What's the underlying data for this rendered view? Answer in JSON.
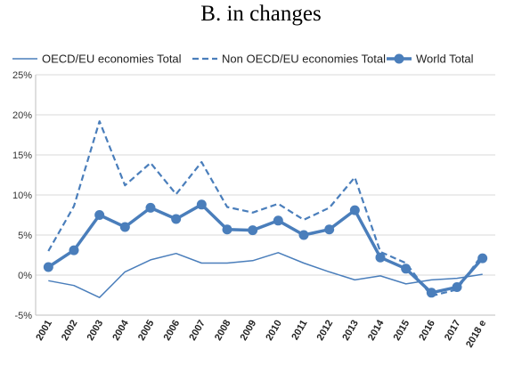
{
  "chart_data": {
    "type": "line",
    "title": "B. in changes",
    "categories": [
      "2001",
      "2002",
      "2003",
      "2004",
      "2005",
      "2006",
      "2007",
      "2008",
      "2009",
      "2010",
      "2011",
      "2012",
      "2013",
      "2014",
      "2015",
      "2016",
      "2017",
      "2018 e"
    ],
    "y_ticks": [
      "25%",
      "20%",
      "15%",
      "10%",
      "5%",
      "0%",
      "-5%"
    ],
    "ylim": [
      -5,
      25
    ],
    "grid": true,
    "legend_position": "top",
    "series": [
      {
        "name": "OECD/EU economies Total",
        "style": "thin-solid",
        "color": "#4a7ebb",
        "values": [
          -0.7,
          -1.3,
          -2.8,
          0.4,
          1.9,
          2.7,
          1.5,
          1.5,
          1.8,
          2.8,
          1.5,
          0.4,
          -0.6,
          -0.1,
          -1.1,
          -0.6,
          -0.4,
          0.1
        ]
      },
      {
        "name": "Non OECD/EU economies Total",
        "style": "dashed",
        "color": "#4a7ebb",
        "values": [
          3.0,
          8.6,
          19.2,
          11.2,
          14.0,
          10.1,
          14.1,
          8.5,
          7.8,
          8.9,
          6.9,
          8.4,
          12.2,
          2.9,
          1.5,
          -2.6,
          -1.8,
          2.6
        ]
      },
      {
        "name": "World Total",
        "style": "thick-marker",
        "color": "#4a7ebb",
        "values": [
          1.0,
          3.1,
          7.5,
          6.0,
          8.4,
          7.0,
          8.8,
          5.7,
          5.6,
          6.8,
          5.0,
          5.7,
          8.1,
          2.2,
          0.8,
          -2.2,
          -1.5,
          2.1
        ]
      }
    ]
  }
}
